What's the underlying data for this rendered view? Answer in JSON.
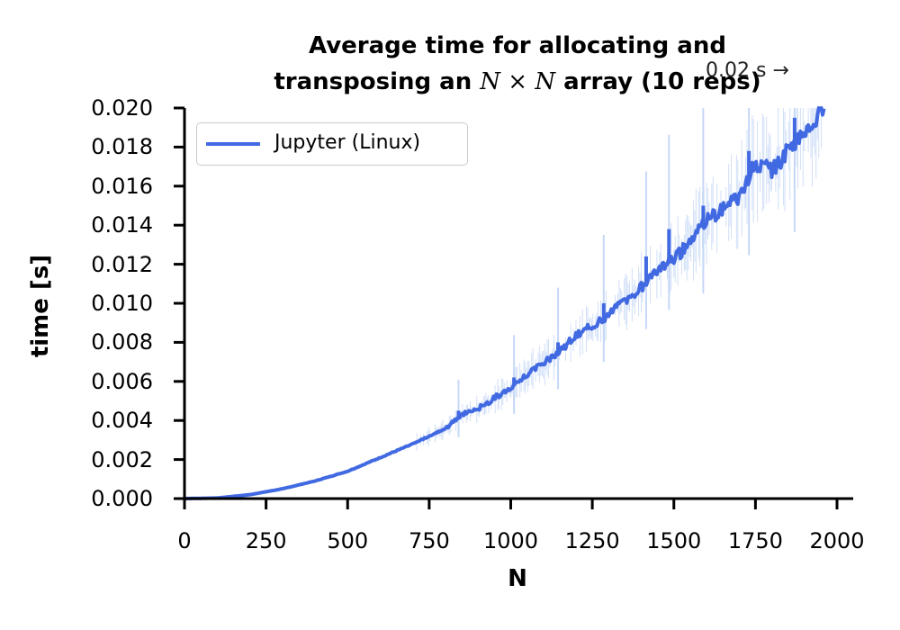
{
  "chart_data": {
    "type": "line",
    "title_line1": "Average time for allocating and",
    "title_line2_prefix": "transposing an ",
    "title_line2_math": "N × N",
    "title_line2_suffix": " array (10 reps)",
    "annotation": "0.02 s →",
    "xlabel": "N",
    "ylabel": "time [s]",
    "xlim": [
      0,
      2050
    ],
    "ylim": [
      0,
      0.02
    ],
    "xticks": [
      "0",
      "250",
      "500",
      "750",
      "1000",
      "1250",
      "1500",
      "1750",
      "2000"
    ],
    "yticks": [
      "0.000",
      "0.002",
      "0.004",
      "0.006",
      "0.008",
      "0.010",
      "0.012",
      "0.014",
      "0.016",
      "0.018",
      "0.020"
    ],
    "grid": false,
    "legend_position": "upper-left",
    "color": "#4169e1",
    "band_color": "#c6d8f7",
    "series": [
      {
        "name": "Jupyter (Linux)",
        "x": [
          0,
          100,
          200,
          300,
          400,
          500,
          600,
          700,
          800,
          850,
          900,
          1000,
          1050,
          1100,
          1200,
          1300,
          1400,
          1450,
          1500,
          1600,
          1700,
          1750,
          1800,
          1900,
          1960
        ],
        "y": [
          0.0,
          3e-05,
          0.0002,
          0.0005,
          0.0009,
          0.0014,
          0.0021,
          0.0028,
          0.0036,
          0.0043,
          0.0046,
          0.0057,
          0.0064,
          0.0069,
          0.0083,
          0.0094,
          0.0108,
          0.0118,
          0.0122,
          0.0142,
          0.0155,
          0.0172,
          0.0168,
          0.0188,
          0.02
        ]
      }
    ],
    "spikes": [
      {
        "x": 840,
        "y": 0.0045
      },
      {
        "x": 1010,
        "y": 0.0062
      },
      {
        "x": 1145,
        "y": 0.008
      },
      {
        "x": 1285,
        "y": 0.01
      },
      {
        "x": 1415,
        "y": 0.0124
      },
      {
        "x": 1485,
        "y": 0.0138
      },
      {
        "x": 1590,
        "y": 0.015
      },
      {
        "x": 1730,
        "y": 0.0178
      },
      {
        "x": 1870,
        "y": 0.0195
      }
    ]
  }
}
